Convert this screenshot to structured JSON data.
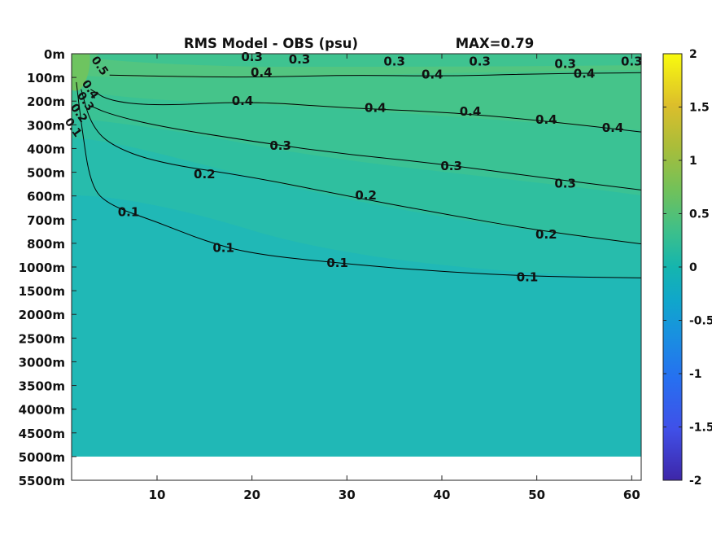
{
  "chart_data": {
    "type": "heatmap",
    "title": "RMS Model - OBS (psu)",
    "annotation": "MAX=0.79",
    "x_ticks": [
      10,
      20,
      30,
      40,
      50,
      60
    ],
    "xlim": [
      1,
      61
    ],
    "y_ticks": [
      "0m",
      "100m",
      "200m",
      "300m",
      "400m",
      "500m",
      "600m",
      "700m",
      "800m",
      "1000m",
      "1500m",
      "2000m",
      "2500m",
      "3000m",
      "3500m",
      "4000m",
      "4500m",
      "5000m",
      "5500m"
    ],
    "data_bottom_level": "5000m",
    "colorbar": {
      "ticks": [
        2,
        1.5,
        1,
        0.5,
        0,
        -0.5,
        -1,
        -1.5,
        -2
      ],
      "clim": [
        -2,
        2
      ],
      "colormap": "parula"
    },
    "contours": [
      {
        "level": 0.1,
        "points": [
          [
            1.5,
            "120m"
          ],
          [
            2,
            "290m"
          ],
          [
            3,
            "560m"
          ],
          [
            5,
            "640m"
          ],
          [
            10,
            "710m"
          ],
          [
            15,
            "790m"
          ],
          [
            20,
            "890m"
          ],
          [
            30,
            "975m"
          ],
          [
            40,
            "1100m"
          ],
          [
            50,
            "1200m"
          ],
          [
            61,
            "1230m"
          ]
        ],
        "labels": [
          [
            7,
            "665m"
          ],
          [
            17,
            "830m"
          ],
          [
            29,
            "960m"
          ],
          [
            49,
            "1200m"
          ]
        ]
      },
      {
        "level": 0.2,
        "points": [
          [
            2,
            "150m"
          ],
          [
            3,
            "295m"
          ],
          [
            5,
            "385m"
          ],
          [
            10,
            "460m"
          ],
          [
            20,
            "520m"
          ],
          [
            30,
            "600m"
          ],
          [
            40,
            "675m"
          ],
          [
            50,
            "745m"
          ],
          [
            61,
            "805m"
          ]
        ],
        "labels": [
          [
            15,
            "505m"
          ],
          [
            32,
            "595m"
          ],
          [
            51,
            "760m"
          ]
        ]
      },
      {
        "level": 0.3,
        "points": [
          [
            3,
            "220m"
          ],
          [
            5,
            "255m"
          ],
          [
            10,
            "305m"
          ],
          [
            20,
            "370m"
          ],
          [
            30,
            "425m"
          ],
          [
            40,
            "465m"
          ],
          [
            50,
            "520m"
          ],
          [
            61,
            "575m"
          ]
        ],
        "labels": [
          [
            23,
            "385m"
          ],
          [
            41,
            "470m"
          ],
          [
            53,
            "545m"
          ]
        ]
      },
      {
        "level": 0.4,
        "points": [
          [
            3,
            "150m"
          ],
          [
            5,
            "200m"
          ],
          [
            10,
            "220m"
          ],
          [
            20,
            "200m"
          ],
          [
            30,
            "230m"
          ],
          [
            40,
            "245m"
          ],
          [
            50,
            "280m"
          ],
          [
            61,
            "330m"
          ]
        ],
        "labels": [
          [
            19,
            "195m"
          ],
          [
            33,
            "225m"
          ],
          [
            43,
            "240m"
          ],
          [
            51,
            "275m"
          ],
          [
            58,
            "310m"
          ]
        ]
      },
      {
        "level": 0.4,
        "points": [
          [
            5,
            "90m"
          ],
          [
            10,
            "95m"
          ],
          [
            20,
            "100m"
          ],
          [
            30,
            "90m"
          ],
          [
            40,
            "95m"
          ],
          [
            50,
            "85m"
          ],
          [
            61,
            "80m"
          ]
        ],
        "labels": [
          [
            21,
            "75m"
          ],
          [
            39,
            "85m"
          ],
          [
            55,
            "80m"
          ]
        ]
      },
      {
        "level": 0.3,
        "points": [
          [
            5,
            "5m"
          ],
          [
            61,
            "5m"
          ]
        ],
        "labels": [
          [
            20,
            "10m"
          ],
          [
            25,
            "20m"
          ],
          [
            35,
            "30m"
          ],
          [
            44,
            "30m"
          ],
          [
            53,
            "40m"
          ],
          [
            60,
            "30m"
          ]
        ]
      }
    ],
    "near_coast_labels": [
      {
        "text": "0.5",
        "x": 4,
        "y": "50m"
      },
      {
        "text": "0.4",
        "x": 3,
        "y": "150m"
      },
      {
        "text": "0.3",
        "x": 2.5,
        "y": "200m"
      },
      {
        "text": "0.2",
        "x": 1.8,
        "y": "250m"
      },
      {
        "text": "0.1",
        "x": 1.2,
        "y": "310m"
      }
    ]
  },
  "colors": {
    "deep": "#1fb8b6",
    "mid": "#2fbf9f",
    "upper": "#45c38a",
    "surface": "#58c47a",
    "contour": "#000000"
  }
}
